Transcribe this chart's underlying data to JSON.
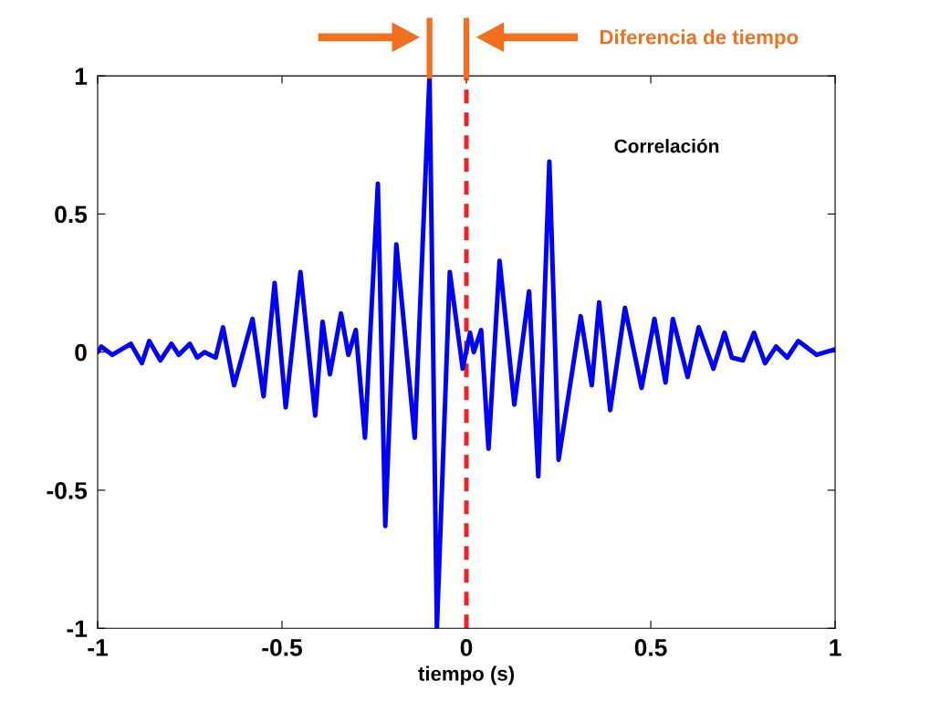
{
  "chart_data": {
    "type": "line",
    "xlabel": "tiempo (s)",
    "x": [
      -1.0,
      -0.99,
      -0.96,
      -0.91,
      -0.88,
      -0.86,
      -0.83,
      -0.8,
      -0.78,
      -0.75,
      -0.73,
      -0.71,
      -0.68,
      -0.66,
      -0.63,
      -0.58,
      -0.55,
      -0.52,
      -0.49,
      -0.45,
      -0.41,
      -0.39,
      -0.37,
      -0.34,
      -0.32,
      -0.3,
      -0.275,
      -0.24,
      -0.22,
      -0.19,
      -0.14,
      -0.1,
      -0.08,
      -0.045,
      -0.01,
      0.01,
      0.02,
      0.04,
      0.06,
      0.09,
      0.13,
      0.17,
      0.195,
      0.225,
      0.25,
      0.31,
      0.34,
      0.36,
      0.39,
      0.43,
      0.475,
      0.51,
      0.54,
      0.56,
      0.6,
      0.63,
      0.67,
      0.7,
      0.72,
      0.75,
      0.78,
      0.81,
      0.84,
      0.87,
      0.9,
      0.95,
      1.0
    ],
    "series": [
      {
        "name": "Correlación",
        "color": "#0000ff",
        "values": [
          0.0,
          0.02,
          -0.01,
          0.03,
          -0.04,
          0.04,
          -0.03,
          0.03,
          -0.01,
          0.03,
          -0.02,
          0.0,
          -0.02,
          0.09,
          -0.12,
          0.12,
          -0.16,
          0.25,
          -0.2,
          0.29,
          -0.23,
          0.11,
          -0.08,
          0.14,
          -0.01,
          0.08,
          -0.31,
          0.61,
          -0.63,
          0.39,
          -0.31,
          1.0,
          -1.0,
          0.29,
          -0.06,
          0.07,
          0.0,
          0.08,
          -0.35,
          0.33,
          -0.19,
          0.22,
          -0.45,
          0.69,
          -0.39,
          0.13,
          -0.12,
          0.18,
          -0.21,
          0.16,
          -0.13,
          0.12,
          -0.11,
          0.12,
          -0.09,
          0.09,
          -0.06,
          0.07,
          -0.02,
          -0.03,
          0.07,
          -0.04,
          0.02,
          -0.02,
          0.04,
          -0.01,
          0.01
        ]
      }
    ],
    "xlim": [
      -1,
      1
    ],
    "xticks": [
      -1,
      -0.5,
      0,
      0.5,
      1
    ],
    "ylim": [
      -1,
      1
    ],
    "yticks": [
      -1,
      -0.5,
      0,
      0.5,
      1
    ],
    "ref_lines": [
      {
        "axis": "x",
        "value": 0,
        "color": "#ee2222",
        "line_style": "dashed"
      }
    ],
    "annotations": [
      "Diferencia de tiempo"
    ],
    "grid": false,
    "legend": false,
    "marker": "none",
    "line_style": "solid"
  }
}
